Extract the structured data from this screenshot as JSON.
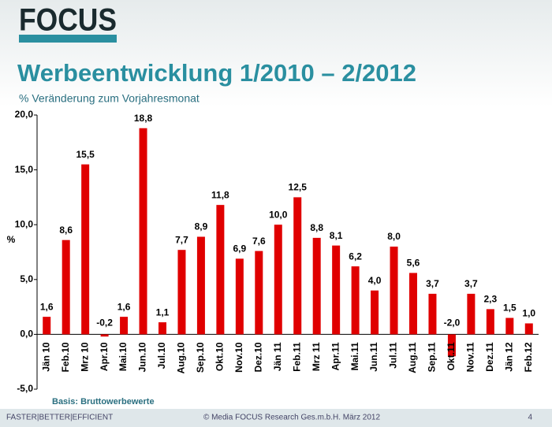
{
  "logo": "FOCUS",
  "chart_data": {
    "type": "bar",
    "title": "Werbeentwicklung 1/2010 – 2/2012",
    "subtitle": "% Veränderung zum Vorjahresmonat",
    "y_label": "%",
    "categories": [
      "Jän 10",
      "Feb.10",
      "Mrz 10",
      "Apr.10",
      "Mai.10",
      "Jun.10",
      "Jul.10",
      "Aug.10",
      "Sep.10",
      "Okt.10",
      "Nov.10",
      "Dez.10",
      "Jän 11",
      "Feb.11",
      "Mrz 11",
      "Apr.11",
      "Mai.11",
      "Jun.11",
      "Jul.11",
      "Aug.11",
      "Sep.11",
      "Okt.11",
      "Nov.11",
      "Dez.11",
      "Jän 12",
      "Feb.12"
    ],
    "values": [
      1.6,
      8.6,
      15.5,
      -0.2,
      1.6,
      18.8,
      1.1,
      7.7,
      8.9,
      11.8,
      6.9,
      7.6,
      10.0,
      12.5,
      8.8,
      8.1,
      6.2,
      4.0,
      8.0,
      5.6,
      3.7,
      -2.0,
      3.7,
      2.3,
      1.5,
      1.0
    ],
    "value_labels": [
      "1,6",
      "8,6",
      "15,5",
      "-0,2",
      "1,6",
      "18,8",
      "1,1",
      "7,7",
      "8,9",
      "11,8",
      "6,9",
      "7,6",
      "10,0",
      "12,5",
      "8,8",
      "8,1",
      "6,2",
      "4,0",
      "8,0",
      "5,6",
      "3,7",
      "-2,0",
      "3,7",
      "2,3",
      "1,5",
      "1,0"
    ],
    "color": "#e00000",
    "ylim": [
      -5,
      20
    ],
    "yticks": [
      {
        "value": -5,
        "label": "-5,0"
      },
      {
        "value": 0,
        "label": "0,0"
      },
      {
        "value": 5,
        "label": "5,0"
      },
      {
        "value": 10,
        "label": "10,0"
      },
      {
        "value": 15,
        "label": "15,0"
      },
      {
        "value": 20,
        "label": "20,0"
      }
    ],
    "grid": false
  },
  "footnote": "Basis: Bruttowerbewerte",
  "footer": {
    "left": "FASTER|BETTER|EFFICIENT",
    "center": "© Media FOCUS Research Ges.m.b.H. März 2012",
    "page": "4"
  }
}
